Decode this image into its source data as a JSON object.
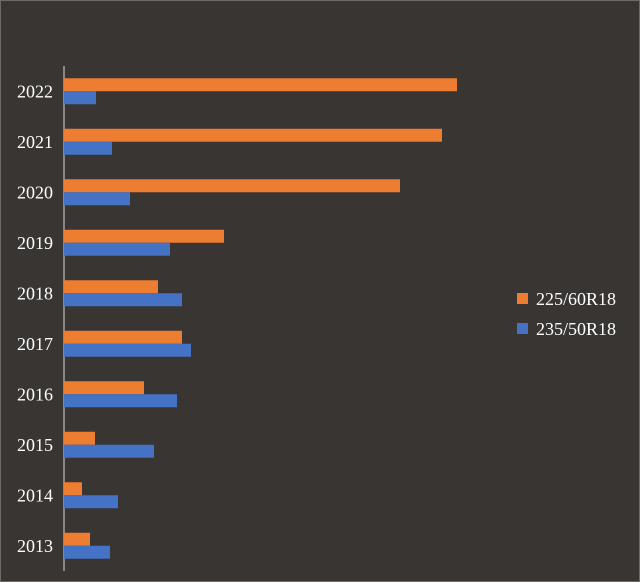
{
  "chart_data": {
    "type": "bar",
    "orientation": "horizontal",
    "categories": [
      "2013",
      "2014",
      "2015",
      "2016",
      "2017",
      "2018",
      "2019",
      "2020",
      "2021",
      "2022"
    ],
    "series": [
      {
        "name": "225/60R18",
        "color": "#ed7d31",
        "values": [
          26,
          18,
          31,
          80,
          118,
          94,
          160,
          336,
          378,
          393
        ]
      },
      {
        "name": "235/50R18",
        "color": "#4472c4",
        "values": [
          46,
          54,
          90,
          113,
          127,
          118,
          106,
          66,
          48,
          32
        ]
      }
    ],
    "xlim": [
      0,
      560
    ],
    "grid": false,
    "legend": "right",
    "background": "#383532"
  }
}
